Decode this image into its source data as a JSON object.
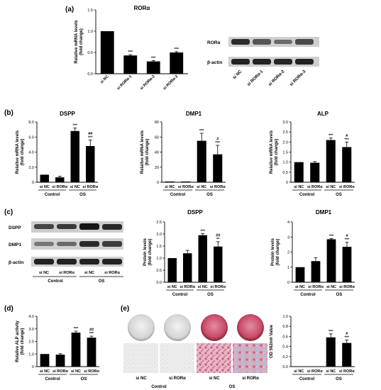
{
  "panel_letters": [
    "(a)",
    "(b)",
    "(c)",
    "(d)",
    "(e)"
  ],
  "colors": {
    "bar": "#000000",
    "bg": "#ffffff"
  },
  "chart_data": [
    {
      "id": "a",
      "type": "bar",
      "title": "RORα",
      "categories": [
        "si NC",
        "si RORα-1",
        "si RORα-2",
        "si RORα-3"
      ],
      "values": [
        1.0,
        0.43,
        0.29,
        0.5
      ],
      "errors": [
        0,
        0.02,
        0.02,
        0.02
      ],
      "annotations": [
        "",
        "***",
        "***",
        "***"
      ],
      "ylabel": "Relative mRNA levels\n(fold change)",
      "ylim": [
        0,
        1.5
      ],
      "yticks": [
        "0.0",
        "0.5",
        "1.0",
        "1.5"
      ]
    },
    {
      "id": "b1",
      "type": "bar",
      "title": "DSPP",
      "categories": [
        "si NC",
        "si RORα",
        "si NC",
        "si RORα"
      ],
      "groups": [
        "Control",
        "OS"
      ],
      "values": [
        1.0,
        0.65,
        6.8,
        4.8
      ],
      "errors": [
        0,
        0.15,
        0.4,
        0.8
      ],
      "annotations": [
        "",
        "",
        "***",
        "##\n***"
      ],
      "ylabel": "Relative mRNA levels\n(fold change)",
      "ylim": [
        0,
        8
      ],
      "yticks": [
        "0",
        "2.0",
        "4.0",
        "6.0",
        "8.0"
      ]
    },
    {
      "id": "b2",
      "type": "bar",
      "title": "DMP1",
      "categories": [
        "si NC",
        "si RORα",
        "si NC",
        "si RORα"
      ],
      "groups": [
        "Control",
        "OS"
      ],
      "values": [
        1.0,
        1.0,
        55,
        37
      ],
      "errors": [
        0,
        0,
        10,
        12
      ],
      "annotations": [
        "",
        "",
        "***",
        "#\n***"
      ],
      "ylabel": "Relative mRNA levels\n(fold change)",
      "ylim": [
        0,
        80
      ],
      "yticks": [
        "0",
        "20",
        "40",
        "60",
        "80"
      ]
    },
    {
      "id": "b3",
      "type": "bar",
      "title": "ALP",
      "categories": [
        "si NC",
        "si RORα",
        "si NC",
        "si RORα"
      ],
      "groups": [
        "Control",
        "OS"
      ],
      "values": [
        1.0,
        0.97,
        2.1,
        1.75
      ],
      "errors": [
        0,
        0.06,
        0.1,
        0.25
      ],
      "annotations": [
        "",
        "",
        "***",
        "#\n***"
      ],
      "ylabel": "Relative mRNA levels\n(fold change)",
      "ylim": [
        0,
        3.0
      ],
      "yticks": [
        "0",
        "0.5",
        "1.0",
        "1.5",
        "2.0",
        "2.5",
        "3.0"
      ]
    },
    {
      "id": "c1",
      "type": "bar",
      "title": "DSPP",
      "categories": [
        "si NC",
        "si RORα",
        "si NC",
        "si RORα"
      ],
      "groups": [
        "Control",
        "OS"
      ],
      "values": [
        1.0,
        1.2,
        1.95,
        1.48
      ],
      "errors": [
        0,
        0.12,
        0.06,
        0.2
      ],
      "annotations": [
        "",
        "",
        "***",
        "##\n**"
      ],
      "ylabel": "Protein levels\n(fold change)",
      "ylim": [
        0,
        2.5
      ],
      "yticks": [
        "0.0",
        "0.5",
        "1.0",
        "1.5",
        "2.0",
        "2.5"
      ]
    },
    {
      "id": "c2",
      "type": "bar",
      "title": "DMP1",
      "categories": [
        "si NC",
        "si RORα",
        "si NC",
        "si RORα"
      ],
      "groups": [
        "Control",
        "OS"
      ],
      "values": [
        1.0,
        1.4,
        2.85,
        2.35
      ],
      "errors": [
        0,
        0.22,
        0.05,
        0.3
      ],
      "annotations": [
        "",
        "",
        "***",
        "#\n***"
      ],
      "ylabel": "Protein levels\n(fold change)",
      "ylim": [
        0,
        4
      ],
      "yticks": [
        "0",
        "1",
        "2",
        "3",
        "4"
      ]
    },
    {
      "id": "d",
      "type": "bar",
      "title": "",
      "categories": [
        "si NC",
        "si RORα",
        "si NC",
        "si RORα"
      ],
      "groups": [
        "Control",
        "OS"
      ],
      "values": [
        1.0,
        0.95,
        2.7,
        2.3
      ],
      "errors": [
        0,
        0.08,
        0.12,
        0.12
      ],
      "annotations": [
        "",
        "",
        "***",
        "##\n***"
      ],
      "ylabel": "Relative ALP activity\n(fold change)",
      "ylim": [
        0,
        4
      ],
      "yticks": [
        "0",
        "1.0",
        "2.0",
        "3.0",
        "4.0"
      ]
    },
    {
      "id": "e",
      "type": "bar",
      "title": "",
      "categories": [
        "si NC",
        "si RORα",
        "si NC",
        "si RORα"
      ],
      "groups": [
        "Control",
        "OS"
      ],
      "values": [
        0.005,
        0.005,
        0.58,
        0.47
      ],
      "errors": [
        0,
        0,
        0.07,
        0.06
      ],
      "annotations": [
        "",
        "",
        "***",
        "#\n***"
      ],
      "ylabel": "OD 562nm Value",
      "ylim": [
        0,
        1.0
      ],
      "yticks": [
        "0.0",
        "0.2",
        "0.4",
        "0.6",
        "0.8",
        "1.0"
      ]
    }
  ],
  "blot_a": {
    "rows": [
      "RORα",
      "β-actin"
    ],
    "lanes": [
      "si NC",
      "si RORα-1",
      "si RORα-2",
      "si RORα-3"
    ]
  },
  "blot_c": {
    "rows": [
      "DSPP",
      "DMP1",
      "β-actin"
    ],
    "lanes": [
      "si NC",
      "si RORα",
      "si NC",
      "si RORα"
    ],
    "groups": [
      "Control",
      "OS"
    ]
  },
  "stain_e": {
    "lanes": [
      "si NC",
      "si RORα",
      "si NC",
      "si RORα"
    ],
    "groups": [
      "Control",
      "OS"
    ]
  }
}
